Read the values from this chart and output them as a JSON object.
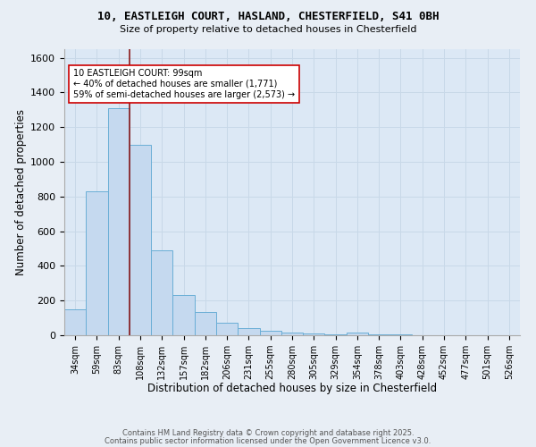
{
  "title_line1": "10, EASTLEIGH COURT, HASLAND, CHESTERFIELD, S41 0BH",
  "title_line2": "Size of property relative to detached houses in Chesterfield",
  "xlabel": "Distribution of detached houses by size in Chesterfield",
  "ylabel": "Number of detached properties",
  "bar_labels": [
    "34sqm",
    "59sqm",
    "83sqm",
    "108sqm",
    "132sqm",
    "157sqm",
    "182sqm",
    "206sqm",
    "231sqm",
    "255sqm",
    "280sqm",
    "305sqm",
    "329sqm",
    "354sqm",
    "378sqm",
    "403sqm",
    "428sqm",
    "452sqm",
    "477sqm",
    "501sqm",
    "526sqm"
  ],
  "bar_values": [
    150,
    830,
    1310,
    1100,
    490,
    230,
    135,
    70,
    42,
    25,
    15,
    8,
    5,
    13,
    3,
    3,
    1,
    0,
    0,
    0,
    0
  ],
  "bar_color": "#c5d9ef",
  "bar_edge_color": "#6aaed6",
  "vline_color": "#8b1a1a",
  "annotation_text": "10 EASTLEIGH COURT: 99sqm\n← 40% of detached houses are smaller (1,771)\n59% of semi-detached houses are larger (2,573) →",
  "annotation_box_color": "#ffffff",
  "annotation_box_edge": "#cc0000",
  "ylim": [
    0,
    1650
  ],
  "yticks": [
    0,
    200,
    400,
    600,
    800,
    1000,
    1200,
    1400,
    1600
  ],
  "grid_color": "#c8d8e8",
  "background_color": "#dce8f5",
  "fig_background": "#e8eef5",
  "footer_line1": "Contains HM Land Registry data © Crown copyright and database right 2025.",
  "footer_line2": "Contains public sector information licensed under the Open Government Licence v3.0."
}
